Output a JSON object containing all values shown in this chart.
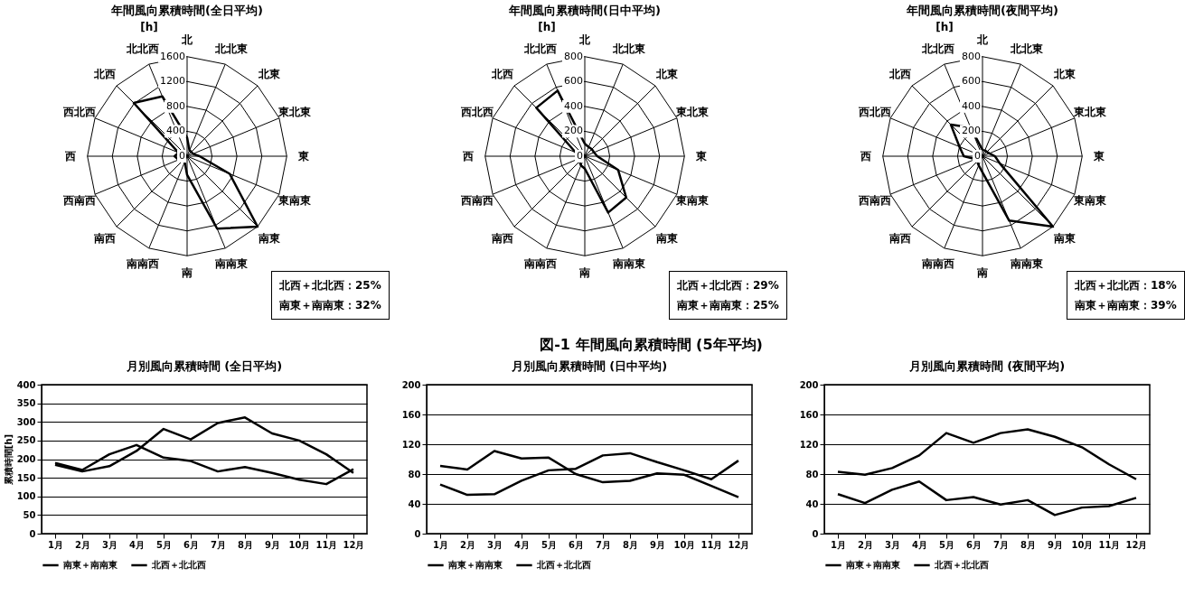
{
  "chart_data": [
    {
      "type": "radar",
      "title": "年間風向累積時間(全日平均)",
      "ylabel": "[h]",
      "categories": [
        "北",
        "北北東",
        "北東",
        "東北東",
        "東",
        "東南東",
        "南東",
        "南南東",
        "南",
        "南南西",
        "南西",
        "西南西",
        "西",
        "西北西",
        "北西",
        "北北西"
      ],
      "series": [
        {
          "color": "#000000",
          "values": [
            300,
            100,
            100,
            100,
            200,
            740,
            1600,
            1260,
            300,
            100,
            100,
            150,
            200,
            150,
            1210,
            1040
          ]
        }
      ],
      "ylim": [
        0,
        1600
      ],
      "yticks": [
        0,
        400,
        800,
        1200,
        1600
      ],
      "grid": true,
      "annotations": [
        "北西＋北北西：25%",
        "南東＋南南東：32%"
      ]
    },
    {
      "type": "radar",
      "title": "年間風向累積時間(日中平均)",
      "ylabel": "[h]",
      "categories": [
        "北",
        "北北東",
        "北東",
        "東北東",
        "東",
        "東南東",
        "南東",
        "南南東",
        "南",
        "南南西",
        "南西",
        "西南西",
        "西",
        "西北西",
        "北西",
        "北北西"
      ],
      "series": [
        {
          "color": "#000000",
          "values": [
            100,
            80,
            80,
            80,
            100,
            290,
            470,
            490,
            100,
            80,
            60,
            50,
            60,
            80,
            550,
            570
          ]
        }
      ],
      "ylim": [
        0,
        800
      ],
      "yticks": [
        0,
        200,
        400,
        600,
        800
      ],
      "grid": true,
      "annotations": [
        "北西＋北北西：29%",
        "南東＋南南東：25%"
      ]
    },
    {
      "type": "radar",
      "title": "年間風向累積時間(夜間平均)",
      "ylabel": "[h]",
      "categories": [
        "北",
        "北北東",
        "北東",
        "東北東",
        "東",
        "東南東",
        "南東",
        "南南東",
        "南",
        "南南西",
        "南西",
        "西南西",
        "西",
        "西北西",
        "北西",
        "北北西"
      ],
      "series": [
        {
          "color": "#000000",
          "values": [
            50,
            50,
            50,
            60,
            100,
            150,
            800,
            560,
            130,
            80,
            60,
            60,
            150,
            200,
            360,
            250
          ]
        }
      ],
      "ylim": [
        0,
        800
      ],
      "yticks": [
        0,
        200,
        400,
        600,
        800
      ],
      "grid": true,
      "annotations": [
        "北西＋北北西：18%",
        "南東＋南南東：39%"
      ]
    },
    {
      "type": "other",
      "title": "図-1 年間風向累積時間 (5年平均)"
    },
    {
      "type": "line",
      "title": "月別風向累積時間 (全日平均)",
      "ylabel": "累積時間[h]",
      "categories": [
        "1月",
        "2月",
        "3月",
        "4月",
        "5月",
        "6月",
        "7月",
        "8月",
        "9月",
        "10月",
        "11月",
        "12月"
      ],
      "series": [
        {
          "name": "南東＋南南東",
          "color": "#000000",
          "values": [
            185,
            167,
            181,
            222,
            281,
            253,
            297,
            312,
            269,
            250,
            213,
            163
          ]
        },
        {
          "name": "北西＋北北西",
          "color": "#000000",
          "values": [
            190,
            171,
            213,
            238,
            204,
            195,
            167,
            179,
            163,
            145,
            133,
            173
          ]
        }
      ],
      "ylim": [
        0,
        400
      ],
      "yticks": [
        0,
        50,
        100,
        150,
        200,
        250,
        300,
        350,
        400
      ],
      "grid": "y",
      "legend": "bottom"
    },
    {
      "type": "line",
      "title": "月別風向累積時間 (日中平均)",
      "categories": [
        "1月",
        "2月",
        "3月",
        "4月",
        "5月",
        "6月",
        "7月",
        "8月",
        "9月",
        "10月",
        "11月",
        "12月"
      ],
      "series": [
        {
          "name": "南東＋南南東",
          "color": "#000000",
          "values": [
            91,
            86,
            111,
            101,
            102,
            80,
            69,
            71,
            81,
            79,
            64,
            49
          ]
        },
        {
          "name": "北西＋北北西",
          "color": "#000000",
          "values": [
            66,
            52,
            53,
            71,
            85,
            87,
            105,
            108,
            96,
            85,
            73,
            98
          ]
        }
      ],
      "ylim": [
        0,
        200
      ],
      "yticks": [
        0,
        40,
        80,
        120,
        160,
        200
      ],
      "grid": "y",
      "legend": "bottom"
    },
    {
      "type": "line",
      "title": "月別風向累積時間 (夜間平均)",
      "categories": [
        "1月",
        "2月",
        "3月",
        "4月",
        "5月",
        "6月",
        "7月",
        "8月",
        "9月",
        "10月",
        "11月",
        "12月"
      ],
      "series": [
        {
          "name": "南東＋南南東",
          "color": "#000000",
          "values": [
            83,
            79,
            88,
            105,
            135,
            122,
            135,
            140,
            130,
            116,
            93,
            73
          ]
        },
        {
          "name": "北西＋北北西",
          "color": "#000000",
          "values": [
            53,
            41,
            59,
            70,
            45,
            49,
            39,
            45,
            25,
            35,
            37,
            48
          ]
        }
      ],
      "ylim": [
        0,
        200
      ],
      "yticks": [
        0,
        40,
        80,
        120,
        160,
        200
      ],
      "grid": "y",
      "legend": "bottom"
    }
  ]
}
